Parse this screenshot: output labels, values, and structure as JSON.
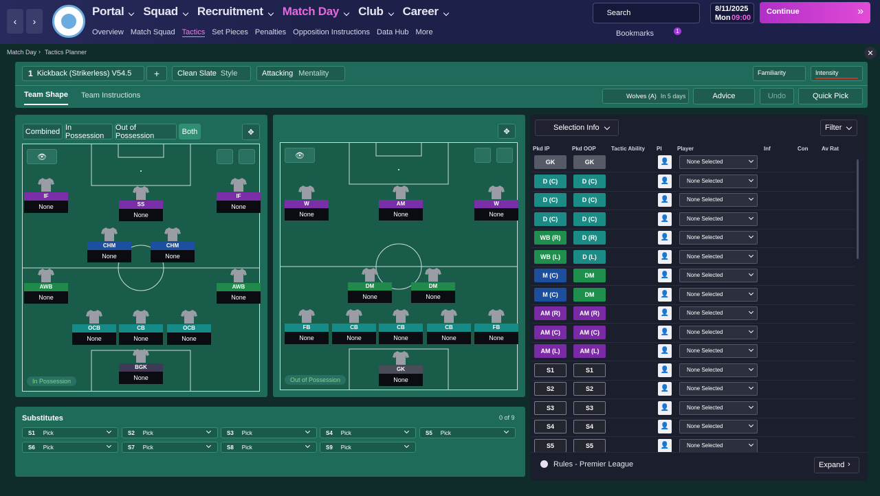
{
  "nav": {
    "main_menu": [
      "Portal",
      "Squad",
      "Recruitment",
      "Match Day",
      "Club",
      "Career"
    ],
    "sub_menu": [
      "Overview",
      "Match Squad",
      "Tactics",
      "Set Pieces",
      "Penalties",
      "Opposition Instructions",
      "Data Hub",
      "More"
    ],
    "search": "Search",
    "date": "8/11/2025",
    "day": "Mon",
    "time": "09:00",
    "continue": "Continue",
    "bookmarks": "Bookmarks",
    "notification_count": "1"
  },
  "breadcrumb": [
    "Match Day",
    "Tactics Planner"
  ],
  "tactic_bar": {
    "slot": "1",
    "name": "Kickback (Strikerless) V54.5",
    "style": "Clean Slate",
    "style_label": "Style",
    "mentality": "Attacking",
    "mentality_label": "Mentality",
    "familiarity": "Familiarity",
    "intensity": "Intensity"
  },
  "tabs": [
    "Team Shape",
    "Team Instructions"
  ],
  "next_match": {
    "opponent": "Wolves (A)",
    "when": "In 5 days"
  },
  "actions": [
    "Advice",
    "Undo",
    "Quick Pick"
  ],
  "shape_filters": [
    "Combined",
    "In Possession",
    "Out of Possession",
    "Both"
  ],
  "pitches": [
    {
      "label": "In Possession",
      "slots": [
        {
          "role": "IF",
          "color": "#7a2fa8",
          "player": "None"
        },
        {
          "role": "SS",
          "color": "#7a2fa8",
          "player": "None"
        },
        {
          "role": "IF",
          "color": "#7a2fa8",
          "player": "None"
        },
        {
          "role": "CHM",
          "color": "#1d4fa0",
          "player": "None"
        },
        {
          "role": "CHM",
          "color": "#1d4fa0",
          "player": "None"
        },
        {
          "role": "AWB",
          "color": "#1f8a4a",
          "player": "None"
        },
        {
          "role": "AWB",
          "color": "#1f8a4a",
          "player": "None"
        },
        {
          "role": "OCB",
          "color": "#168a86",
          "player": "None"
        },
        {
          "role": "CB",
          "color": "#168a86",
          "player": "None"
        },
        {
          "role": "OCB",
          "color": "#168a86",
          "player": "None"
        },
        {
          "role": "BGK",
          "color": "#3e3a55",
          "player": "None"
        }
      ]
    },
    {
      "label": "Out of Possession",
      "slots": [
        {
          "role": "W",
          "color": "#7a2fa8",
          "player": "None"
        },
        {
          "role": "AM",
          "color": "#7a2fa8",
          "player": "None"
        },
        {
          "role": "W",
          "color": "#7a2fa8",
          "player": "None"
        },
        {
          "role": "DM",
          "color": "#1f8a4a",
          "player": "None"
        },
        {
          "role": "DM",
          "color": "#1f8a4a",
          "player": "None"
        },
        {
          "role": "FB",
          "color": "#168a86",
          "player": "None"
        },
        {
          "role": "CB",
          "color": "#168a86",
          "player": "None"
        },
        {
          "role": "CB",
          "color": "#168a86",
          "player": "None"
        },
        {
          "role": "CB",
          "color": "#168a86",
          "player": "None"
        },
        {
          "role": "FB",
          "color": "#168a86",
          "player": "None"
        },
        {
          "role": "GK",
          "color": "#4a4c58",
          "player": "None"
        }
      ]
    }
  ],
  "selection": {
    "view": "Selection Info",
    "filter": "Filter",
    "headers": [
      "Pkd IP",
      "Pkd OOP",
      "Tactic Ability",
      "PI",
      "Player",
      "Inf",
      "Con",
      "Av Rat"
    ],
    "rows": [
      {
        "ip": "GK",
        "ip_color": "#555a66",
        "oop": "GK",
        "oop_color": "#555a66",
        "player": "None Selected"
      },
      {
        "ip": "D (C)",
        "ip_color": "#1b8b86",
        "oop": "D (C)",
        "oop_color": "#1b8b86",
        "player": "None Selected"
      },
      {
        "ip": "D (C)",
        "ip_color": "#1b8b86",
        "oop": "D (C)",
        "oop_color": "#1b8b86",
        "player": "None Selected"
      },
      {
        "ip": "D (C)",
        "ip_color": "#1b8b86",
        "oop": "D (C)",
        "oop_color": "#1b8b86",
        "player": "None Selected"
      },
      {
        "ip": "WB (R)",
        "ip_color": "#1e8f4c",
        "oop": "D (R)",
        "oop_color": "#1b8b86",
        "player": "None Selected"
      },
      {
        "ip": "WB (L)",
        "ip_color": "#1e8f4c",
        "oop": "D (L)",
        "oop_color": "#1b8b86",
        "player": "None Selected"
      },
      {
        "ip": "M (C)",
        "ip_color": "#1c4e9e",
        "oop": "DM",
        "oop_color": "#1e8f4c",
        "player": "None Selected"
      },
      {
        "ip": "M (C)",
        "ip_color": "#1c4e9e",
        "oop": "DM",
        "oop_color": "#1e8f4c",
        "player": "None Selected"
      },
      {
        "ip": "AM (R)",
        "ip_color": "#7b2aa6",
        "oop": "AM (R)",
        "oop_color": "#7b2aa6",
        "player": "None Selected"
      },
      {
        "ip": "AM (C)",
        "ip_color": "#7b2aa6",
        "oop": "AM (C)",
        "oop_color": "#7b2aa6",
        "player": "None Selected"
      },
      {
        "ip": "AM (L)",
        "ip_color": "#7b2aa6",
        "oop": "AM (L)",
        "oop_color": "#7b2aa6",
        "player": "None Selected"
      },
      {
        "ip": "S1",
        "ip_color": "#23252f",
        "oop": "S1",
        "oop_color": "#23252f",
        "player": "None Selected"
      },
      {
        "ip": "S2",
        "ip_color": "#23252f",
        "oop": "S2",
        "oop_color": "#23252f",
        "player": "None Selected"
      },
      {
        "ip": "S3",
        "ip_color": "#23252f",
        "oop": "S3",
        "oop_color": "#23252f",
        "player": "None Selected"
      },
      {
        "ip": "S4",
        "ip_color": "#23252f",
        "oop": "S4",
        "oop_color": "#23252f",
        "player": "None Selected"
      },
      {
        "ip": "S5",
        "ip_color": "#23252f",
        "oop": "S5",
        "oop_color": "#23252f",
        "player": "None Selected"
      }
    ],
    "rules": "Rules - Premier League",
    "expand": "Expand"
  },
  "substitutes": {
    "title": "Substitutes",
    "count": "0 of 9",
    "slots": [
      {
        "id": "S1",
        "player": "Pick"
      },
      {
        "id": "S2",
        "player": "Pick"
      },
      {
        "id": "S3",
        "player": "Pick"
      },
      {
        "id": "S4",
        "player": "Pick"
      },
      {
        "id": "S5",
        "player": "Pick"
      },
      {
        "id": "S6",
        "player": "Pick"
      },
      {
        "id": "S7",
        "player": "Pick"
      },
      {
        "id": "S8",
        "player": "Pick"
      },
      {
        "id": "S9",
        "player": "Pick"
      }
    ]
  }
}
